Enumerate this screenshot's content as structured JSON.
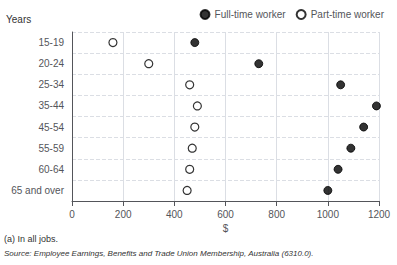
{
  "chart_data": {
    "type": "scatter",
    "orientation": "horizontal",
    "categories": [
      "15-19",
      "20-24",
      "25-34",
      "35-44",
      "45-54",
      "55-59",
      "60-64",
      "65 and over"
    ],
    "series": [
      {
        "name": "Full-time worker",
        "color": "#000000",
        "marker": "circle",
        "values": [
          480,
          730,
          1050,
          1190,
          1140,
          1090,
          1040,
          1000
        ]
      },
      {
        "name": "Part-time worker",
        "color": "#000000",
        "marker": "ring",
        "values": [
          160,
          300,
          460,
          490,
          480,
          470,
          460,
          450
        ]
      }
    ],
    "xlabel": "$",
    "ylabel": "Years",
    "xlim": [
      0,
      1200
    ],
    "xticks": [
      0,
      200,
      400,
      600,
      800,
      1000,
      1200
    ],
    "grid": true,
    "legend": "upper right",
    "annotations": [
      "(a) In all jobs.",
      "Source: Employee Earnings, Benefits and Trade Union Membership, Australia (6310.0)."
    ]
  }
}
